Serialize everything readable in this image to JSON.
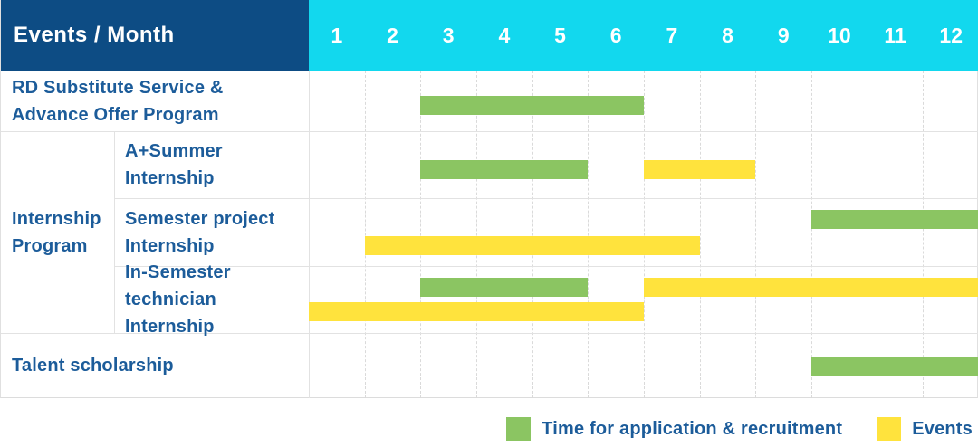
{
  "header": {
    "corner_label": "Events / Month",
    "months": [
      "1",
      "2",
      "3",
      "4",
      "5",
      "6",
      "7",
      "8",
      "9",
      "10",
      "11",
      "12"
    ]
  },
  "colors": {
    "header_bg": "#0d4c84",
    "months_bg": "#12d8ee",
    "recruitment": "#8bc562",
    "event": "#ffe33d",
    "label_text": "#1c5c9a"
  },
  "group_label": {
    "lines": [
      "Internship",
      "Program"
    ]
  },
  "rows": [
    {
      "id": "rd-substitute",
      "label_lines": [
        "RD Substitute Service &",
        "Advance Offer Program"
      ],
      "bars": [
        {
          "kind": "recruitment",
          "start_month": 3,
          "end_month": 6,
          "line": "single"
        }
      ]
    },
    {
      "id": "a-plus-summer",
      "label_lines": [
        "A+Summer",
        "Internship"
      ],
      "bars": [
        {
          "kind": "recruitment",
          "start_month": 3,
          "end_month": 5,
          "line": "single"
        },
        {
          "kind": "event",
          "start_month": 7,
          "end_month": 8,
          "line": "single"
        }
      ]
    },
    {
      "id": "semester-project",
      "label_lines": [
        "Semester project",
        "Internship"
      ],
      "bars": [
        {
          "kind": "recruitment",
          "start_month": 10,
          "end_month": 12,
          "line": "upper"
        },
        {
          "kind": "event",
          "start_month": 2,
          "end_month": 7,
          "line": "lower"
        }
      ]
    },
    {
      "id": "in-semester-technician",
      "label_lines": [
        "In-Semester",
        "technician Internship"
      ],
      "bars": [
        {
          "kind": "recruitment",
          "start_month": 3,
          "end_month": 5,
          "line": "upper"
        },
        {
          "kind": "event",
          "start_month": 7,
          "end_month": 12,
          "line": "upper"
        },
        {
          "kind": "event",
          "start_month": 1,
          "end_month": 6,
          "line": "lower"
        }
      ]
    },
    {
      "id": "talent-scholarship",
      "label_lines": [
        "Talent scholarship"
      ],
      "bars": [
        {
          "kind": "recruitment",
          "start_month": 10,
          "end_month": 12,
          "line": "single"
        }
      ]
    }
  ],
  "legend": {
    "items": [
      {
        "kind": "recruitment",
        "label": "Time for application & recruitment"
      },
      {
        "kind": "event",
        "label": "Events"
      }
    ]
  },
  "chart_data": {
    "type": "table",
    "title": "Events / Month",
    "x_axis": {
      "label": "Month",
      "ticks": [
        1,
        2,
        3,
        4,
        5,
        6,
        7,
        8,
        9,
        10,
        11,
        12
      ]
    },
    "legend_entries": [
      "Time for application & recruitment",
      "Events"
    ],
    "series": [
      {
        "name": "RD Substitute Service & Advance Offer Program",
        "recruitment_months": [
          [
            3,
            6
          ]
        ],
        "event_months": []
      },
      {
        "name": "Internship Program / A+Summer Internship",
        "recruitment_months": [
          [
            3,
            5
          ]
        ],
        "event_months": [
          [
            7,
            8
          ]
        ]
      },
      {
        "name": "Internship Program / Semester project Internship",
        "recruitment_months": [
          [
            10,
            12
          ]
        ],
        "event_months": [
          [
            2,
            7
          ]
        ]
      },
      {
        "name": "Internship Program / In-Semester technician Internship",
        "recruitment_months": [
          [
            3,
            5
          ]
        ],
        "event_months": [
          [
            1,
            6
          ],
          [
            7,
            12
          ]
        ]
      },
      {
        "name": "Talent scholarship",
        "recruitment_months": [
          [
            10,
            12
          ]
        ],
        "event_months": []
      }
    ]
  }
}
